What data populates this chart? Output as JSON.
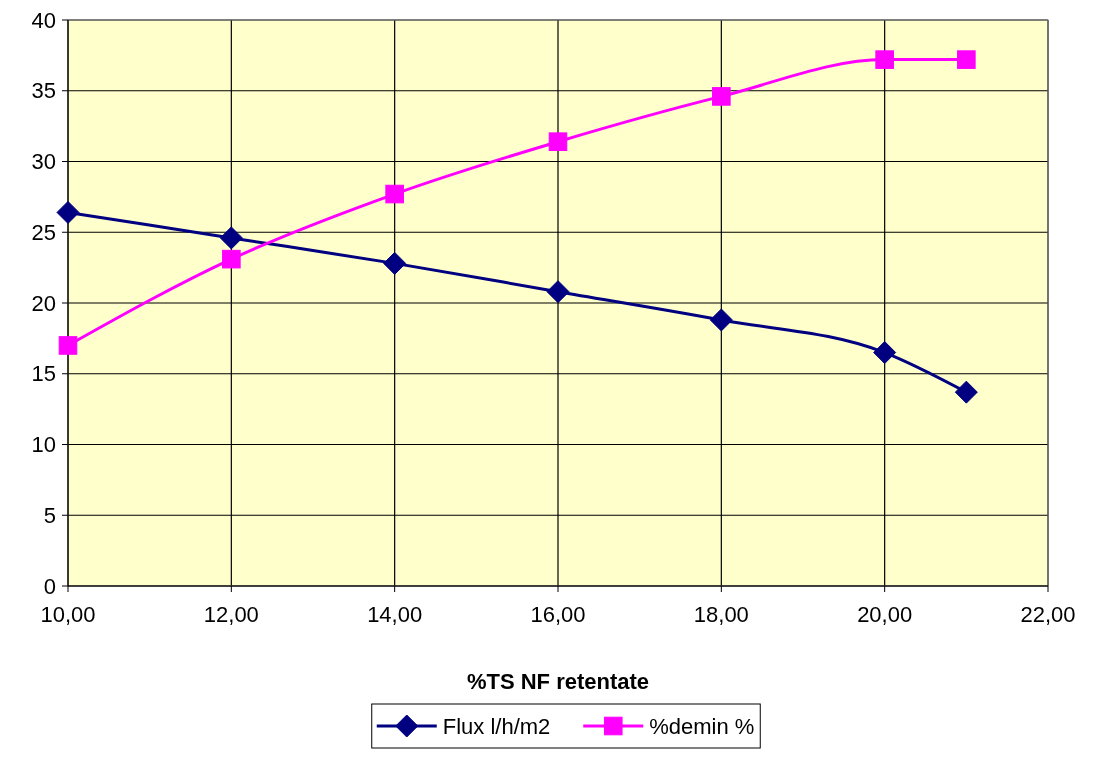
{
  "chart_data": {
    "type": "line",
    "xlabel": "%TS NF retentate",
    "x": [
      10,
      12,
      14,
      16,
      18,
      20,
      21
    ],
    "series": [
      {
        "name": "Flux l/h/m2",
        "color": "#000080",
        "marker": "diamond",
        "values": [
          26.4,
          24.6,
          22.8,
          20.8,
          18.8,
          16.5,
          13.7
        ]
      },
      {
        "name": "%demin %",
        "color": "#ff00ff",
        "marker": "square",
        "values": [
          17.0,
          23.1,
          27.7,
          31.4,
          34.6,
          37.2,
          37.2
        ]
      }
    ],
    "xlim": [
      10,
      22
    ],
    "xticks": [
      {
        "value": 10,
        "label": "10,00"
      },
      {
        "value": 12,
        "label": "12,00"
      },
      {
        "value": 14,
        "label": "14,00"
      },
      {
        "value": 16,
        "label": "16,00"
      },
      {
        "value": 18,
        "label": "18,00"
      },
      {
        "value": 20,
        "label": "20,00"
      },
      {
        "value": 22,
        "label": "22,00"
      }
    ],
    "ylim": [
      0,
      40
    ],
    "yticks": [
      0,
      5,
      10,
      15,
      20,
      25,
      30,
      35,
      40
    ],
    "grid": true,
    "legend": "bottom",
    "line_style": "solid"
  }
}
